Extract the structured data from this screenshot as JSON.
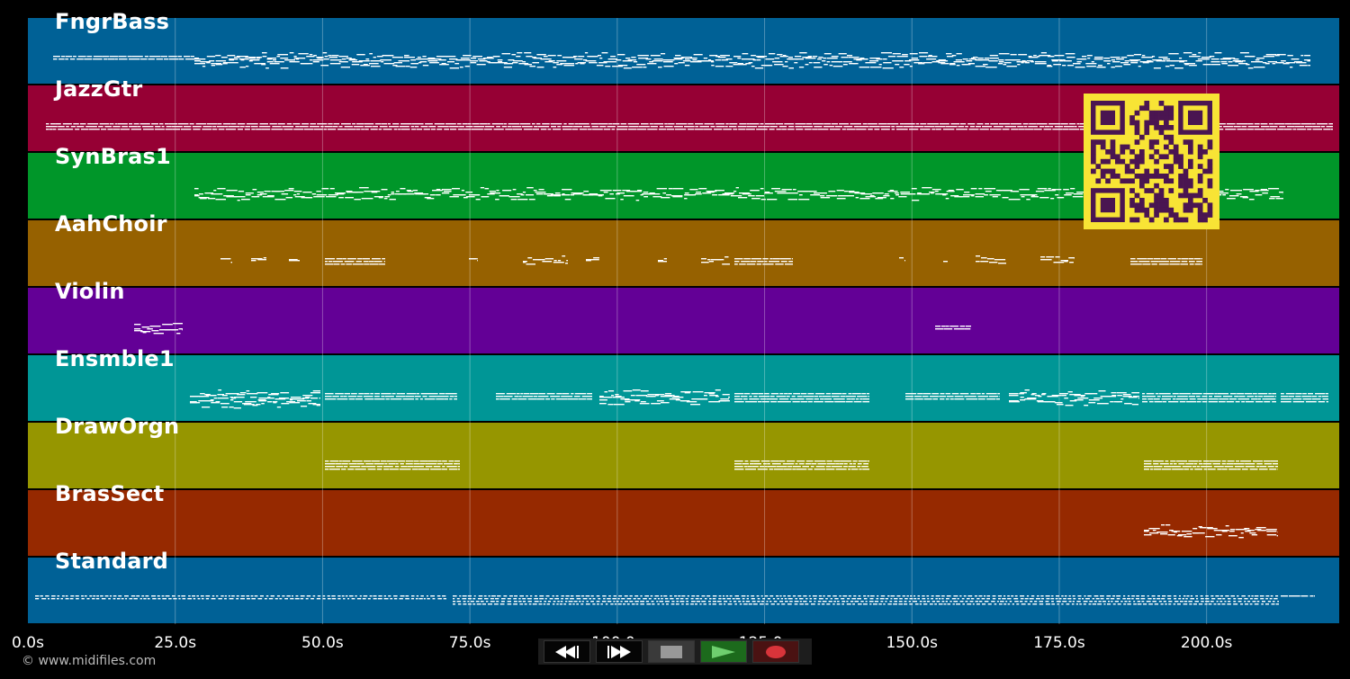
{
  "tracks": [
    {
      "name": "FngrBass",
      "color": "#006196"
    },
    {
      "name": "JazzGtr",
      "color": "#960034"
    },
    {
      "name": "SynBras1",
      "color": "#009629"
    },
    {
      "name": "AahChoir",
      "color": "#966100"
    },
    {
      "name": "Violin",
      "color": "#630096"
    },
    {
      "name": "Ensmble1",
      "color": "#009696"
    },
    {
      "name": "DrawOrgn",
      "color": "#969600"
    },
    {
      "name": "BrasSect",
      "color": "#962900"
    },
    {
      "name": "Standard",
      "color": "#006196"
    }
  ],
  "time_axis": {
    "max_seconds": 222.5,
    "ticks": [
      "0.0s",
      "25.0s",
      "50.0s",
      "75.0s",
      "100.0s",
      "125.0s",
      "150.0s",
      "175.0s",
      "200.0s"
    ]
  },
  "copyright": "© www.midifiles.com",
  "controls": {
    "rewind": "rewind-icon",
    "forward": "fast-forward-icon",
    "stop": "stop-icon",
    "play": "play-icon",
    "record": "record-icon"
  }
}
